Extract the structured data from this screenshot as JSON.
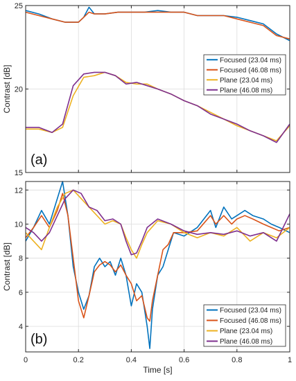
{
  "chart_data": [
    {
      "type": "line",
      "panel_label": "(a)",
      "ylabel": "Contrast [dB]",
      "xlabel": "",
      "xlim": [
        0,
        1
      ],
      "ylim": [
        15,
        25
      ],
      "yticks": [
        15,
        20,
        25
      ],
      "xticks": [
        0,
        0.2,
        0.4,
        0.6,
        0.8,
        1
      ],
      "xtick_labels": [],
      "grid": true,
      "legend_position": "right",
      "series": [
        {
          "name": "Focused (23.04 ms)",
          "color": "#0072BD",
          "x": [
            0,
            0.05,
            0.1,
            0.15,
            0.2,
            0.22,
            0.24,
            0.26,
            0.3,
            0.35,
            0.4,
            0.45,
            0.5,
            0.55,
            0.6,
            0.65,
            0.7,
            0.75,
            0.8,
            0.85,
            0.9,
            0.95,
            1.0
          ],
          "y": [
            24.7,
            24.5,
            24.2,
            24.0,
            24.0,
            24.3,
            24.9,
            24.5,
            24.5,
            24.6,
            24.6,
            24.6,
            24.7,
            24.6,
            24.6,
            24.4,
            24.4,
            24.4,
            24.3,
            24.1,
            23.9,
            23.3,
            22.9
          ]
        },
        {
          "name": "Focused (46.08 ms)",
          "color": "#D95319",
          "x": [
            0,
            0.05,
            0.1,
            0.15,
            0.2,
            0.22,
            0.24,
            0.26,
            0.3,
            0.35,
            0.4,
            0.45,
            0.5,
            0.55,
            0.6,
            0.65,
            0.7,
            0.75,
            0.8,
            0.85,
            0.9,
            0.95,
            1.0
          ],
          "y": [
            24.6,
            24.4,
            24.2,
            24.0,
            24.0,
            24.3,
            24.6,
            24.5,
            24.5,
            24.6,
            24.6,
            24.6,
            24.6,
            24.6,
            24.6,
            24.4,
            24.4,
            24.4,
            24.2,
            24.0,
            23.8,
            23.2,
            23.0
          ]
        },
        {
          "name": "Plane (23.04 ms)",
          "color": "#EDB120",
          "x": [
            0,
            0.05,
            0.1,
            0.14,
            0.18,
            0.22,
            0.26,
            0.3,
            0.34,
            0.38,
            0.42,
            0.46,
            0.5,
            0.55,
            0.6,
            0.65,
            0.7,
            0.75,
            0.8,
            0.85,
            0.9,
            0.95,
            1.0
          ],
          "y": [
            17.6,
            17.6,
            17.4,
            17.7,
            19.6,
            20.7,
            20.8,
            21.0,
            20.8,
            20.4,
            20.3,
            20.3,
            20.0,
            19.7,
            19.3,
            19.0,
            18.6,
            18.2,
            17.8,
            17.5,
            17.2,
            16.9,
            17.8
          ]
        },
        {
          "name": "Plane (46.08 ms)",
          "color": "#7E2F8E",
          "x": [
            0,
            0.05,
            0.1,
            0.14,
            0.18,
            0.22,
            0.26,
            0.3,
            0.34,
            0.38,
            0.42,
            0.46,
            0.5,
            0.55,
            0.6,
            0.65,
            0.7,
            0.75,
            0.8,
            0.85,
            0.9,
            0.95,
            1.0
          ],
          "y": [
            17.7,
            17.7,
            17.4,
            17.9,
            20.2,
            20.9,
            21.0,
            21.0,
            20.8,
            20.3,
            20.4,
            20.2,
            20.0,
            19.7,
            19.3,
            19.0,
            18.5,
            18.2,
            17.9,
            17.5,
            17.2,
            16.8,
            17.9
          ]
        }
      ],
      "legend": [
        "Focused (23.04 ms)",
        "Focused (46.08 ms)",
        "Plane (23.04 ms)",
        "Plane (46.08 ms)"
      ]
    },
    {
      "type": "line",
      "panel_label": "(b)",
      "ylabel": "Contrast [dB]",
      "xlabel": "Time [s]",
      "xlim": [
        0,
        1
      ],
      "ylim": [
        2.5,
        12.5
      ],
      "yticks": [
        4,
        6,
        8,
        10,
        12
      ],
      "xticks": [
        0,
        0.2,
        0.4,
        0.6,
        0.8,
        1
      ],
      "xtick_labels": [
        "0",
        "0.2",
        "0.4",
        "0.6",
        "0.8",
        "1"
      ],
      "grid": true,
      "legend_position": "bottom-right",
      "series": [
        {
          "name": "Focused (23.04 ms)",
          "color": "#0072BD",
          "x": [
            0,
            0.03,
            0.06,
            0.09,
            0.12,
            0.14,
            0.16,
            0.18,
            0.2,
            0.22,
            0.24,
            0.26,
            0.28,
            0.3,
            0.32,
            0.34,
            0.36,
            0.38,
            0.4,
            0.42,
            0.44,
            0.46,
            0.47,
            0.48,
            0.5,
            0.52,
            0.54,
            0.56,
            0.6,
            0.65,
            0.7,
            0.72,
            0.75,
            0.78,
            0.8,
            0.83,
            0.86,
            0.9,
            0.93,
            0.96,
            1.0
          ],
          "y": [
            9.0,
            9.8,
            10.8,
            10.0,
            11.5,
            12.5,
            10.5,
            7.5,
            6.0,
            5.0,
            5.8,
            7.5,
            8.0,
            7.5,
            7.8,
            7.0,
            8.0,
            7.0,
            5.2,
            6.5,
            6.0,
            4.0,
            2.7,
            5.0,
            7.0,
            7.5,
            8.5,
            9.5,
            9.3,
            9.8,
            10.8,
            9.8,
            11.0,
            10.3,
            10.5,
            10.8,
            10.5,
            10.3,
            10.0,
            9.8,
            9.5
          ]
        },
        {
          "name": "Focused (46.08 ms)",
          "color": "#D95319",
          "x": [
            0,
            0.03,
            0.06,
            0.09,
            0.12,
            0.14,
            0.16,
            0.18,
            0.2,
            0.22,
            0.24,
            0.26,
            0.28,
            0.3,
            0.32,
            0.34,
            0.36,
            0.38,
            0.4,
            0.42,
            0.44,
            0.46,
            0.47,
            0.48,
            0.5,
            0.52,
            0.54,
            0.56,
            0.6,
            0.65,
            0.7,
            0.72,
            0.75,
            0.78,
            0.8,
            0.83,
            0.86,
            0.9,
            0.93,
            0.96,
            1.0
          ],
          "y": [
            9.2,
            9.8,
            10.5,
            9.8,
            10.8,
            11.8,
            10.5,
            8.0,
            5.5,
            4.5,
            5.8,
            7.2,
            7.6,
            7.8,
            7.6,
            7.2,
            7.6,
            7.0,
            6.5,
            5.5,
            5.8,
            4.5,
            4.3,
            5.5,
            7.0,
            8.5,
            8.8,
            9.5,
            9.5,
            9.6,
            10.5,
            10.0,
            10.5,
            10.0,
            10.3,
            10.5,
            10.3,
            10.0,
            9.8,
            9.6,
            9.8
          ]
        },
        {
          "name": "Plane (23.04 ms)",
          "color": "#EDB120",
          "x": [
            0,
            0.03,
            0.06,
            0.09,
            0.12,
            0.15,
            0.18,
            0.21,
            0.24,
            0.27,
            0.3,
            0.33,
            0.36,
            0.38,
            0.4,
            0.42,
            0.44,
            0.46,
            0.5,
            0.55,
            0.6,
            0.65,
            0.7,
            0.75,
            0.8,
            0.85,
            0.9,
            0.95,
            1.0
          ],
          "y": [
            9.5,
            9.0,
            8.5,
            9.8,
            11.0,
            11.8,
            12.0,
            11.5,
            11.0,
            10.5,
            10.0,
            10.2,
            10.0,
            9.2,
            8.5,
            8.0,
            8.8,
            9.5,
            10.2,
            10.0,
            9.5,
            9.2,
            9.5,
            9.3,
            9.8,
            9.0,
            9.5,
            9.2,
            9.8
          ]
        },
        {
          "name": "Plane (46.08 ms)",
          "color": "#7E2F8E",
          "x": [
            0,
            0.03,
            0.06,
            0.09,
            0.12,
            0.15,
            0.18,
            0.21,
            0.24,
            0.27,
            0.3,
            0.33,
            0.36,
            0.38,
            0.4,
            0.42,
            0.44,
            0.46,
            0.5,
            0.55,
            0.6,
            0.65,
            0.7,
            0.75,
            0.8,
            0.85,
            0.9,
            0.95,
            1.0
          ],
          "y": [
            9.8,
            9.5,
            9.0,
            9.5,
            10.5,
            11.5,
            12.0,
            11.8,
            11.0,
            10.8,
            10.2,
            10.3,
            10.0,
            9.0,
            8.2,
            8.3,
            9.0,
            9.8,
            10.3,
            10.0,
            9.6,
            9.4,
            9.5,
            9.4,
            9.6,
            9.3,
            9.5,
            9.0,
            10.6
          ]
        }
      ],
      "legend": [
        "Focused (23.04 ms)",
        "Focused (46.08 ms)",
        "Plane (23.04 ms)",
        "Plane (46.08 ms)"
      ]
    }
  ]
}
